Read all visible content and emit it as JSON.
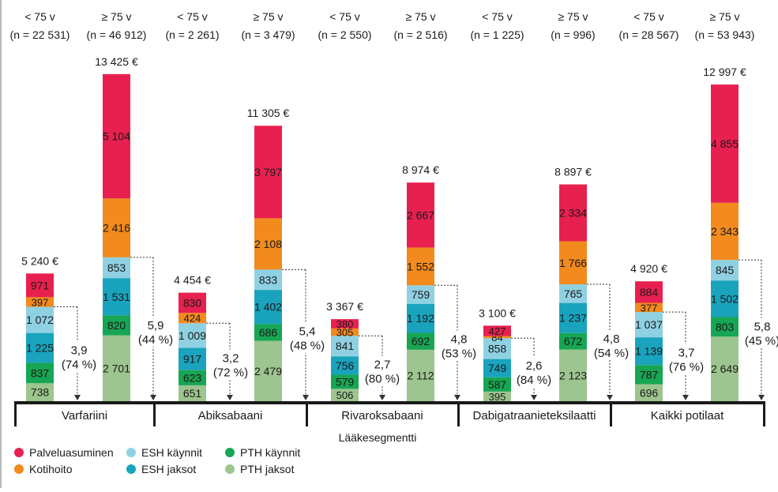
{
  "chart_data": {
    "type": "bar",
    "stacked": true,
    "xlabel": "Lääkesegmentti",
    "ylim": [
      0,
      14000
    ],
    "grid": false,
    "legend_position": "bottom-left",
    "units": "€",
    "groups": [
      {
        "name": "Varfariini",
        "bars": [
          {
            "header": "< 75 v",
            "n": "(n = 22 531)",
            "total": "5 240 €",
            "values": [
              738,
              837,
              1225,
              1072,
              397,
              971
            ],
            "labels": [
              "738",
              "837",
              "1 225",
              "1 072",
              "397",
              "971"
            ]
          },
          {
            "header": "≥ 75 v",
            "n": "(n = 46 912)",
            "total": "13 425 €",
            "values": [
              2701,
              820,
              1531,
              853,
              2416,
              5104
            ],
            "labels": [
              "2 701",
              "820",
              "1 531",
              "853",
              "2 416",
              "5 104"
            ]
          }
        ],
        "diff_left": {
          "value": 3.9,
          "text": [
            "3,9",
            "(74 %)"
          ]
        },
        "diff_right": {
          "value": 5.9,
          "text": [
            "5,9",
            "(44 %)"
          ]
        }
      },
      {
        "name": "Abiksabaani",
        "bars": [
          {
            "header": "< 75 v",
            "n": "(n = 2 261)",
            "total": "4 454 €",
            "values": [
              651,
              623,
              917,
              1009,
              424,
              830
            ],
            "labels": [
              "651",
              "623",
              "917",
              "1 009",
              "424",
              "830"
            ]
          },
          {
            "header": "≥ 75 v",
            "n": "(n = 3 479)",
            "total": "11 305 €",
            "values": [
              2479,
              686,
              1402,
              833,
              2108,
              3797
            ],
            "labels": [
              "2 479",
              "686",
              "1 402",
              "833",
              "2 108",
              "3 797"
            ]
          }
        ],
        "diff_left": {
          "value": 3.2,
          "text": [
            "3,2",
            "(72 %)"
          ]
        },
        "diff_right": {
          "value": 5.4,
          "text": [
            "5,4",
            "(48 %)"
          ]
        }
      },
      {
        "name": "Rivaroksabaani",
        "bars": [
          {
            "header": "< 75 v",
            "n": "(n = 2 550)",
            "total": "3 367 €",
            "values": [
              506,
              579,
              756,
              841,
              305,
              380
            ],
            "labels": [
              "506",
              "579",
              "756",
              "841",
              "305",
              "380"
            ]
          },
          {
            "header": "≥ 75 v",
            "n": "(n = 2 516)",
            "total": "8 974 €",
            "values": [
              2112,
              692,
              1192,
              759,
              1552,
              2667
            ],
            "labels": [
              "2 112",
              "692",
              "1 192",
              "759",
              "1 552",
              "2 667"
            ]
          }
        ],
        "diff_left": {
          "value": 2.7,
          "text": [
            "2,7",
            "(80 %)"
          ]
        },
        "diff_right": {
          "value": 4.8,
          "text": [
            "4,8",
            "(53 %)"
          ]
        }
      },
      {
        "name": "Dabigatraanieteksilaatti",
        "bars": [
          {
            "header": "< 75 v",
            "n": "(n = 1 225)",
            "total": "3 100 €",
            "values": [
              395,
              587,
              749,
              858,
              84,
              427
            ],
            "labels": [
              "395",
              "587",
              "749",
              "858",
              "84",
              "427"
            ]
          },
          {
            "header": "≥ 75 v",
            "n": "(n = 996)",
            "total": "8 897 €",
            "values": [
              2123,
              672,
              1237,
              765,
              1766,
              2334
            ],
            "labels": [
              "2 123",
              "672",
              "1 237",
              "765",
              "1 766",
              "2 334"
            ]
          }
        ],
        "diff_left": {
          "value": 2.6,
          "text": [
            "2,6",
            "(84 %)"
          ]
        },
        "diff_right": {
          "value": 4.8,
          "text": [
            "4,8",
            "(54 %)"
          ]
        }
      },
      {
        "name": "Kaikki potilaat",
        "bars": [
          {
            "header": "< 75 v",
            "n": "(n = 28 567)",
            "total": "4 920 €",
            "values": [
              696,
              787,
              1139,
              1037,
              377,
              884
            ],
            "labels": [
              "696",
              "787",
              "1 139",
              "1 037",
              "377",
              "884"
            ]
          },
          {
            "header": "≥ 75 v",
            "n": "(n = 53 943)",
            "total": "12 997 €",
            "values": [
              2649,
              803,
              1502,
              845,
              2343,
              4855
            ],
            "labels": [
              "2 649",
              "803",
              "1 502",
              "845",
              "2 343",
              "4 855"
            ]
          }
        ],
        "diff_left": {
          "value": 3.7,
          "text": [
            "3,7",
            "(76 %)"
          ]
        },
        "diff_right": {
          "value": 5.8,
          "text": [
            "5,8",
            "(45 %)"
          ]
        }
      }
    ],
    "segments": [
      {
        "name": "PTH jaksot",
        "color": "#9dc58f"
      },
      {
        "name": "PTH käynnit",
        "color": "#17a653"
      },
      {
        "name": "ESH jaksot",
        "color": "#1aa3bd"
      },
      {
        "name": "ESH käynnit",
        "color": "#8fd1e2"
      },
      {
        "name": "Kotihoito",
        "color": "#f28a1e"
      },
      {
        "name": "Palveluasuminen",
        "color": "#e8204f"
      }
    ],
    "legend_order": [
      "Palveluasuminen",
      "ESH käynnit",
      "PTH käynnit",
      "Kotihoito",
      "ESH jaksot",
      "PTH jaksot"
    ]
  }
}
